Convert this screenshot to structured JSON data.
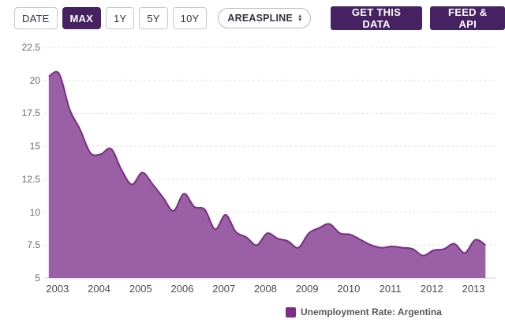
{
  "toolbar": {
    "range_buttons": [
      {
        "id": "date",
        "label": "DATE",
        "active": false
      },
      {
        "id": "max",
        "label": "MAX",
        "active": true
      },
      {
        "id": "1y",
        "label": "1Y",
        "active": false
      },
      {
        "id": "5y",
        "label": "5Y",
        "active": false
      },
      {
        "id": "10y",
        "label": "10Y",
        "active": false
      }
    ],
    "chart_type_select": {
      "selected": "AREASPLINE",
      "arrows_icon": "up-down-arrows"
    },
    "action_buttons": [
      {
        "id": "get-this-data",
        "label": "GET THIS DATA"
      },
      {
        "id": "feed-api",
        "label": "FEED & API"
      }
    ]
  },
  "colors": {
    "accent_button": "#472262",
    "series_fill": "#9a5fa4",
    "series_line": "#772f80",
    "legend_swatch": "#7d2d87",
    "gridline": "#e0e0e0",
    "axis_line": "#cfcfcf"
  },
  "legend": {
    "label": "Unemployment Rate: Argentina"
  },
  "chart_data": {
    "type": "areaspline",
    "title": "",
    "xlabel": "",
    "ylabel": "",
    "grid": "horizontal-dashed",
    "legend_position": "bottom",
    "ylim": [
      5,
      22.5
    ],
    "xlim": [
      2002.68,
      2013.53
    ],
    "y_ticks": [
      5,
      7.5,
      10,
      12.5,
      15,
      17.5,
      20,
      22.5
    ],
    "x_ticks": [
      2003,
      2004,
      2005,
      2006,
      2007,
      2008,
      2009,
      2010,
      2011,
      2012,
      2013
    ],
    "series": [
      {
        "name": "Unemployment Rate: Argentina",
        "frequency": "quarterly",
        "x_start": 2002.79,
        "x_step": 0.25,
        "values": [
          20.3,
          20.5,
          17.8,
          16.3,
          14.5,
          14.4,
          14.8,
          13.2,
          12.1,
          13.0,
          12.1,
          11.1,
          10.1,
          11.4,
          10.4,
          10.2,
          8.7,
          9.8,
          8.5,
          8.1,
          7.5,
          8.4,
          8.0,
          7.8,
          7.3,
          8.4,
          8.8,
          9.1,
          8.4,
          8.3,
          7.9,
          7.5,
          7.3,
          7.4,
          7.3,
          7.2,
          6.7,
          7.1,
          7.2,
          7.6,
          6.9,
          7.9,
          7.5
        ]
      }
    ]
  }
}
